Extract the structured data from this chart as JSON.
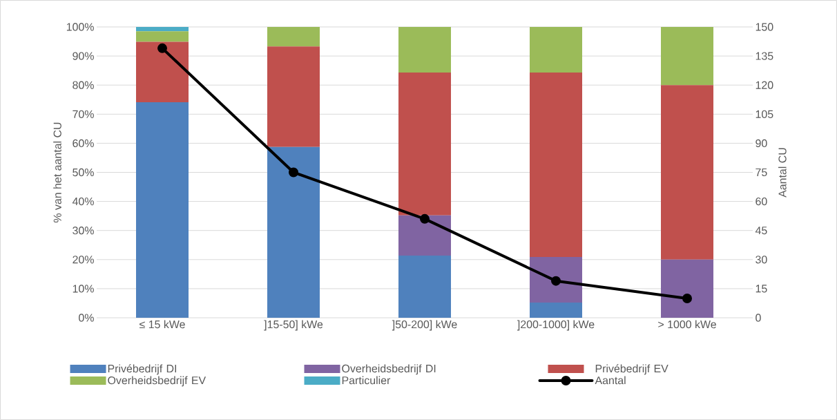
{
  "chart_data": {
    "type": "bar",
    "stacked": true,
    "categories": [
      "≤ 15 kWe",
      "]15-50] kWe",
      "]50-200] kWe",
      "]200-1000] kWe",
      "> 1000 kWe"
    ],
    "series": [
      {
        "name": "Privébedrijf DI",
        "color": "#4f81bd",
        "values": [
          74.1,
          58.7,
          21.4,
          5.2,
          0
        ]
      },
      {
        "name": "Overheidsbedrijf DI",
        "color": "#8064a2",
        "values": [
          0,
          0,
          13.8,
          15.7,
          20
        ]
      },
      {
        "name": "Privébedrijf EV",
        "color": "#c0504d",
        "values": [
          20.8,
          34.6,
          49.1,
          63.4,
          60
        ]
      },
      {
        "name": "Overheidsbedrijf EV",
        "color": "#9bbb59",
        "values": [
          3.6,
          6.7,
          15.7,
          15.7,
          20
        ]
      },
      {
        "name": "Particulier",
        "color": "#4bacc6",
        "values": [
          1.5,
          0,
          0,
          0,
          0
        ]
      },
      {
        "name": "Aantal",
        "type": "line",
        "axis": "y2",
        "marker": "circle",
        "color": "#000000",
        "values": [
          139,
          75,
          51,
          19,
          10
        ]
      }
    ],
    "ylabel": "% van het aantal CU",
    "y2label": "Aantal CU",
    "ylim": [
      0,
      100
    ],
    "yticks": [
      {
        "value": 0,
        "label": "0%"
      },
      {
        "value": 10,
        "label": "10%"
      },
      {
        "value": 20,
        "label": "20%"
      },
      {
        "value": 30,
        "label": "30%"
      },
      {
        "value": 40,
        "label": "40%"
      },
      {
        "value": 50,
        "label": "50%"
      },
      {
        "value": 60,
        "label": "60%"
      },
      {
        "value": 70,
        "label": "70%"
      },
      {
        "value": 80,
        "label": "80%"
      },
      {
        "value": 90,
        "label": "90%"
      },
      {
        "value": 100,
        "label": "100%"
      }
    ],
    "y2lim": [
      0,
      150
    ],
    "y2ticks": [
      0,
      15,
      30,
      45,
      60,
      75,
      90,
      105,
      120,
      135,
      150
    ],
    "grid": "y",
    "legend": "bottom"
  }
}
